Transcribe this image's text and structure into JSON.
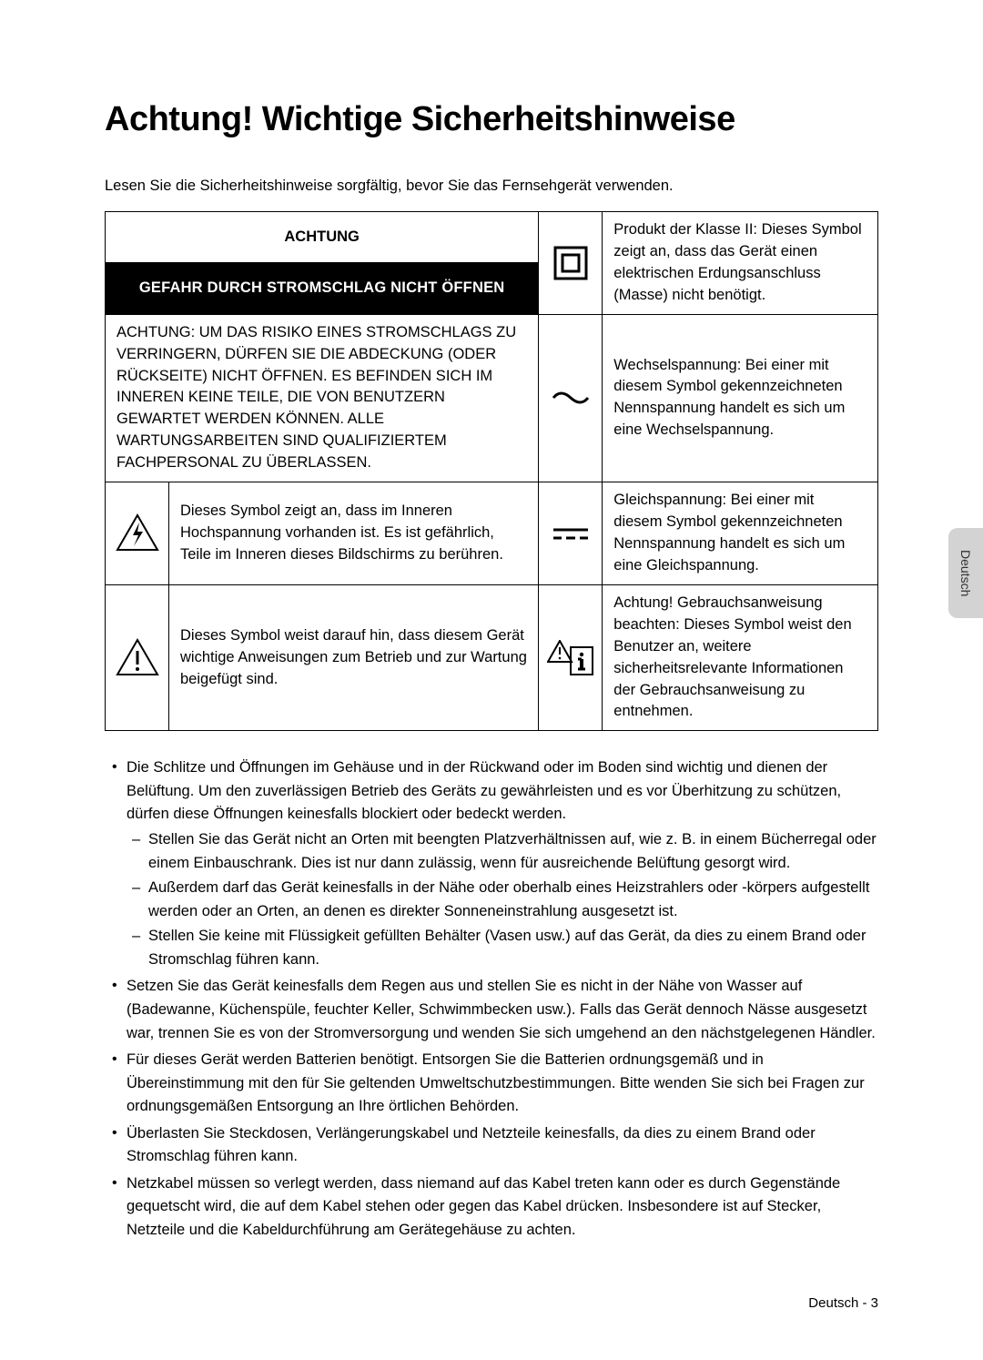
{
  "title": "Achtung! Wichtige Sicherheitshinweise",
  "intro": "Lesen Sie die Sicherheitshinweise sorgfältig, bevor Sie das Fernsehgerät verwenden.",
  "table": {
    "achtung_header": "ACHTUNG",
    "gefahr_header": "GEFAHR DURCH STROMSCHLAG NICHT ÖFFNEN",
    "achtung_body": "ACHTUNG: UM DAS RISIKO EINES STROMSCHLAGS ZU VERRINGERN, DÜRFEN SIE DIE ABDECKUNG (ODER RÜCKSEITE) NICHT ÖFFNEN. ES BEFINDEN SICH IM INNEREN KEINE TEILE, DIE VON BENUTZERN GEWARTET WERDEN KÖNNEN. ALLE WARTUNGSARBEITEN SIND QUALIFIZIERTEM FACHPERSONAL ZU ÜBERLASSEN.",
    "class2": "Produkt der Klasse II: Dieses Symbol zeigt an, dass das Gerät einen elektrischen Erdungsanschluss (Masse) nicht benötigt.",
    "ac": "Wechselspannung: Bei einer mit diesem Symbol gekennzeichneten Nennspannung handelt es sich um eine Wechselspannung.",
    "highvoltage": "Dieses Symbol zeigt an, dass im Inneren Hochspannung vorhanden ist. Es ist gefährlich, Teile im Inneren dieses Bildschirms zu berühren.",
    "dc": "Gleichspannung: Bei einer mit diesem Symbol gekennzeichneten Nennspannung handelt es sich um eine Gleichspannung.",
    "warning": "Dieses Symbol weist darauf hin, dass diesem Gerät wichtige Anweisungen zum Betrieb und zur Wartung beigefügt sind.",
    "info": "Achtung! Gebrauchsanweisung beachten: Dieses Symbol weist den Benutzer an, weitere sicherheitsrelevante Informationen der Gebrauchsanweisung zu entnehmen."
  },
  "bullets": [
    {
      "text": "Die Schlitze und Öffnungen im Gehäuse und in der Rückwand oder im Boden sind wichtig und dienen der Belüftung. Um den zuverlässigen Betrieb des Geräts zu gewährleisten und es vor Überhitzung zu schützen, dürfen diese Öffnungen keinesfalls blockiert oder bedeckt werden.",
      "sub": [
        "Stellen Sie das Gerät nicht an Orten mit beengten Platzverhältnissen auf, wie z. B. in einem Bücherregal oder einem Einbauschrank. Dies ist nur dann zulässig, wenn für ausreichende Belüftung gesorgt wird.",
        "Außerdem darf das Gerät keinesfalls in der Nähe oder oberhalb eines Heizstrahlers oder -körpers aufgestellt werden oder an Orten, an denen es direkter Sonneneinstrahlung ausgesetzt ist.",
        "Stellen Sie keine mit Flüssigkeit gefüllten Behälter (Vasen usw.) auf das Gerät, da dies zu einem Brand oder Stromschlag führen kann."
      ]
    },
    {
      "text": "Setzen Sie das Gerät keinesfalls dem Regen aus und stellen Sie es nicht in der Nähe von Wasser auf (Badewanne, Küchenspüle, feuchter Keller, Schwimmbecken usw.). Falls das Gerät dennoch Nässe ausgesetzt war, trennen Sie es von der Stromversorgung und wenden Sie sich umgehend an den nächstgelegenen Händler."
    },
    {
      "text": "Für dieses Gerät werden Batterien benötigt. Entsorgen Sie die Batterien ordnungsgemäß und in Übereinstimmung mit den für Sie geltenden Umweltschutzbestimmungen. Bitte wenden Sie sich bei Fragen zur ordnungsgemäßen Entsorgung an Ihre örtlichen Behörden."
    },
    {
      "text": "Überlasten Sie Steckdosen, Verlängerungskabel und Netzteile keinesfalls, da dies zu einem Brand oder Stromschlag führen kann."
    },
    {
      "text": "Netzkabel müssen so verlegt werden, dass niemand auf das Kabel treten kann oder es durch Gegenstände gequetscht wird, die auf dem Kabel stehen oder gegen das Kabel drücken. Insbesondere ist auf Stecker, Netzteile und die Kabeldurchführung am Gerätegehäuse zu achten."
    }
  ],
  "side_tab": "Deutsch",
  "page_number": "Deutsch - 3"
}
